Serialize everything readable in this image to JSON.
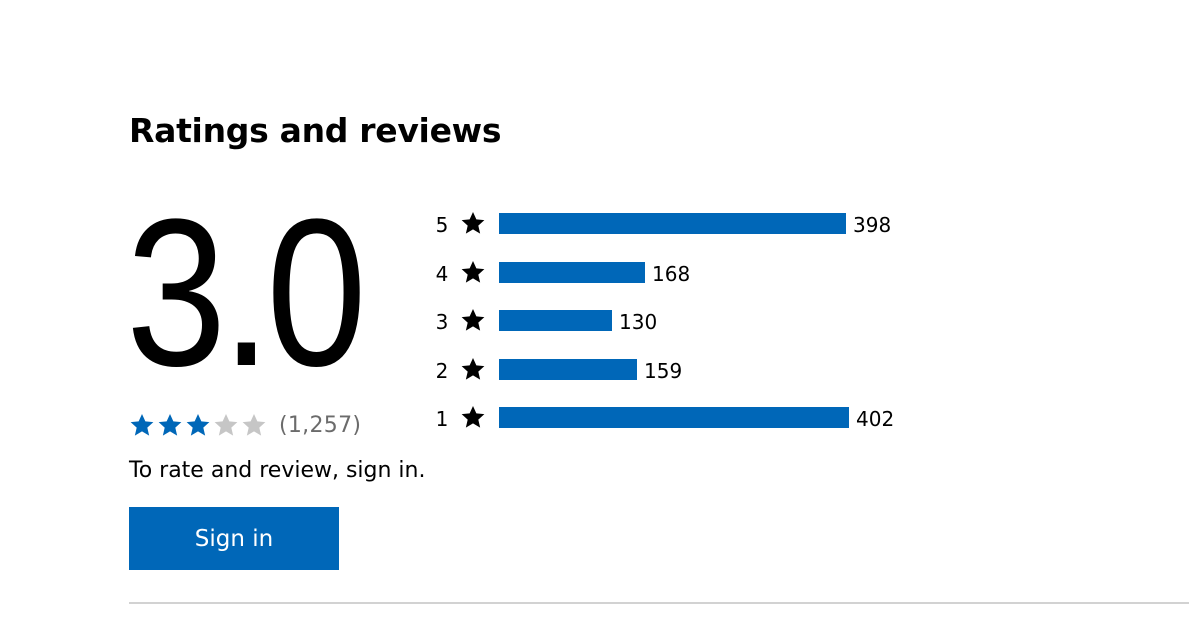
{
  "section": {
    "title": "Ratings and reviews"
  },
  "summary": {
    "average_rating": "3.0",
    "average_rating_value": 3.0,
    "rating_count": "(1,257)",
    "stars": [
      {
        "state": "filled",
        "icon": "star-icon"
      },
      {
        "state": "filled",
        "icon": "star-icon"
      },
      {
        "state": "filled",
        "icon": "star-icon"
      },
      {
        "state": "empty",
        "icon": "star-icon"
      },
      {
        "state": "empty",
        "icon": "star-icon"
      }
    ]
  },
  "sign_in": {
    "prompt": "To rate and review, sign in.",
    "button_label": "Sign in"
  },
  "histogram": {
    "rows": [
      {
        "stars": "5",
        "count": "398",
        "value": 398
      },
      {
        "stars": "4",
        "count": "168",
        "value": 168
      },
      {
        "stars": "3",
        "count": "130",
        "value": 130
      },
      {
        "stars": "2",
        "count": "159",
        "value": 159
      },
      {
        "stars": "1",
        "count": "402",
        "value": 402
      }
    ]
  },
  "colors": {
    "accent": "#0067b8",
    "empty_star": "#c6c6c6",
    "count_text": "#6b6b6b",
    "divider": "#d2d2d2"
  }
}
